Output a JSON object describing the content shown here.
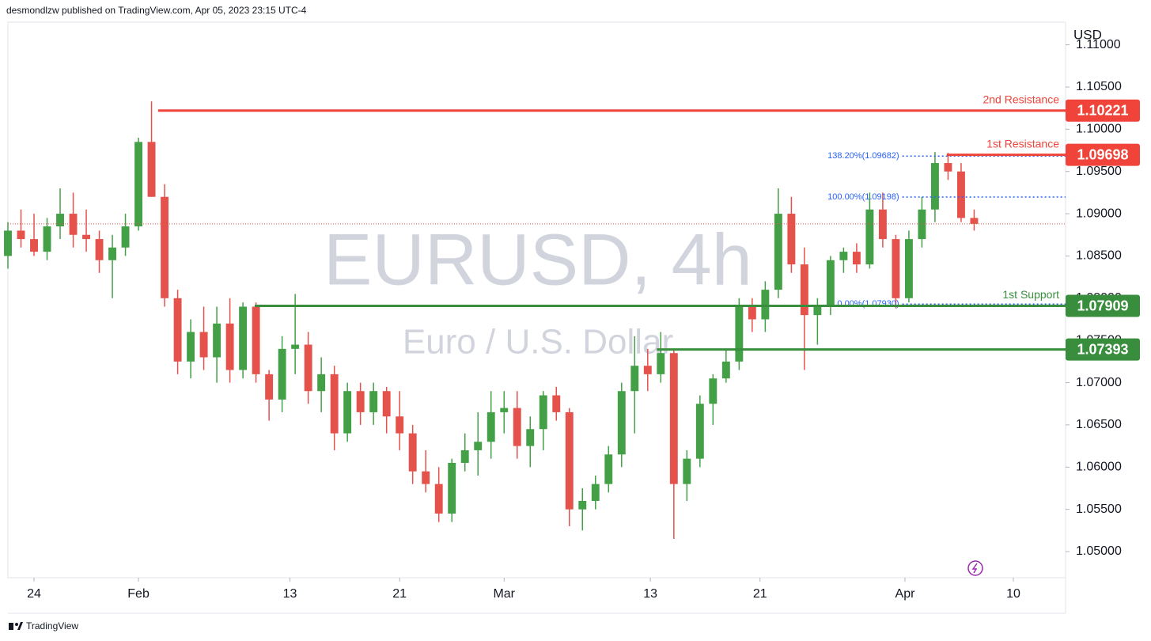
{
  "chart_data": {
    "type": "candlestick",
    "header": "desmondlzw published on TradingView.com, Apr 05, 2023 23:15 UTC-4",
    "symbol_title": "EURUSD, 4h",
    "symbol_name": "Euro / U.S. Dollar",
    "currency": "USD",
    "brand": "TradingView",
    "up_color": "#43a047",
    "down_color": "#e5524c",
    "x": [
      -2,
      -1,
      0,
      1,
      2,
      3,
      4,
      5,
      6,
      7,
      8,
      9,
      10,
      11,
      12,
      13,
      14,
      15,
      16,
      17,
      18,
      19,
      20,
      21,
      22,
      23,
      24,
      25,
      26,
      27,
      28,
      29,
      30,
      31,
      32,
      33,
      34,
      35,
      36,
      37,
      38,
      39,
      40,
      41,
      42,
      43,
      44,
      45,
      46,
      47,
      48,
      49,
      50,
      51,
      52,
      53,
      54,
      55,
      56,
      57,
      58,
      59,
      60,
      61,
      62,
      63,
      64,
      65,
      66,
      67,
      68,
      69,
      70,
      71,
      72
    ],
    "open": [
      1.085,
      1.088,
      1.087,
      1.0855,
      1.0885,
      1.09,
      1.0875,
      1.087,
      1.0845,
      1.086,
      1.0885,
      1.0985,
      1.092,
      1.08,
      1.0725,
      1.076,
      1.073,
      1.077,
      1.0715,
      1.079,
      1.071,
      1.068,
      1.074,
      1.0745,
      1.069,
      1.071,
      1.064,
      1.069,
      1.0665,
      1.069,
      1.066,
      1.064,
      1.0595,
      1.058,
      1.0545,
      1.0605,
      1.062,
      1.063,
      1.0665,
      1.067,
      1.0625,
      1.0645,
      1.0685,
      1.0665,
      1.055,
      1.056,
      1.058,
      1.0615,
      1.069,
      1.072,
      1.071,
      1.0735,
      1.058,
      1.061,
      1.0675,
      1.0705,
      1.0725,
      1.079,
      1.0775,
      1.081,
      1.09,
      1.084,
      1.078,
      1.079,
      1.0845,
      1.0855,
      1.084,
      1.0905,
      1.087,
      1.08,
      1.087,
      1.0905,
      1.096,
      1.095,
      1.0895
    ],
    "high": [
      1.089,
      1.0905,
      1.09,
      1.0895,
      1.093,
      1.0925,
      1.0905,
      1.088,
      1.0875,
      1.09,
      1.099,
      1.1033,
      1.0935,
      1.081,
      1.0775,
      1.079,
      1.079,
      1.08,
      1.0795,
      1.0795,
      1.0715,
      1.0755,
      1.0805,
      1.076,
      1.073,
      1.072,
      1.07,
      1.07,
      1.07,
      1.0695,
      1.069,
      1.065,
      1.062,
      1.06,
      1.061,
      1.064,
      1.0665,
      1.069,
      1.069,
      1.069,
      1.066,
      1.069,
      1.0695,
      1.067,
      1.0575,
      1.059,
      1.0625,
      1.07,
      1.0755,
      1.074,
      1.076,
      1.074,
      1.062,
      1.0685,
      1.071,
      1.074,
      1.08,
      1.08,
      1.082,
      1.093,
      1.092,
      1.086,
      1.08,
      1.085,
      1.086,
      1.0865,
      1.0925,
      1.0925,
      1.0875,
      1.088,
      1.092,
      1.0973,
      1.0972,
      1.096,
      1.0905
    ],
    "low": [
      1.0835,
      1.086,
      1.085,
      1.0845,
      1.087,
      1.086,
      1.0855,
      1.083,
      1.08,
      1.085,
      1.088,
      1.092,
      1.079,
      1.071,
      1.0705,
      1.0715,
      1.07,
      1.07,
      1.0705,
      1.07,
      1.0655,
      1.0665,
      1.071,
      1.0675,
      1.0665,
      1.062,
      1.063,
      1.065,
      1.065,
      1.064,
      1.062,
      1.058,
      1.057,
      1.0535,
      1.0535,
      1.0595,
      1.059,
      1.061,
      1.064,
      1.061,
      1.06,
      1.062,
      1.0655,
      1.053,
      1.0525,
      1.055,
      1.057,
      1.06,
      1.064,
      1.069,
      1.07,
      1.0515,
      1.056,
      1.06,
      1.065,
      1.07,
      1.0715,
      1.076,
      1.076,
      1.08,
      1.083,
      1.0715,
      1.0745,
      1.078,
      1.083,
      1.083,
      1.0835,
      1.086,
      1.0788,
      1.0795,
      1.086,
      1.089,
      1.094,
      1.089,
      1.088
    ],
    "close": [
      1.088,
      1.087,
      1.0855,
      1.0885,
      1.09,
      1.0875,
      1.087,
      1.0845,
      1.086,
      1.0885,
      1.0985,
      1.092,
      1.08,
      1.0725,
      1.076,
      1.073,
      1.077,
      1.0715,
      1.079,
      1.071,
      1.068,
      1.074,
      1.0745,
      1.069,
      1.071,
      1.064,
      1.069,
      1.0665,
      1.069,
      1.066,
      1.064,
      1.0595,
      1.058,
      1.0545,
      1.0605,
      1.062,
      1.063,
      1.0665,
      1.067,
      1.0625,
      1.0645,
      1.0685,
      1.0665,
      1.055,
      1.056,
      1.058,
      1.0615,
      1.069,
      1.072,
      1.071,
      1.0735,
      1.058,
      1.061,
      1.0675,
      1.0705,
      1.0725,
      1.079,
      1.0775,
      1.081,
      1.09,
      1.084,
      1.078,
      1.079,
      1.0845,
      1.0855,
      1.084,
      1.0905,
      1.087,
      1.08,
      1.087,
      1.0905,
      1.096,
      1.095,
      1.0895,
      1.0888
    ],
    "xlim": [
      -2,
      79
    ],
    "xticks": [
      {
        "value": 0,
        "label": "24"
      },
      {
        "value": 8,
        "label": "Feb"
      },
      {
        "value": 19.6,
        "label": "13"
      },
      {
        "value": 28,
        "label": "21"
      },
      {
        "value": 36,
        "label": "Mar"
      },
      {
        "value": 47.2,
        "label": "13"
      },
      {
        "value": 55.6,
        "label": "21"
      },
      {
        "value": 66.7,
        "label": "Apr"
      },
      {
        "value": 75,
        "label": "10"
      }
    ],
    "ylim": [
      1.04691,
      1.11268
    ],
    "yticks": [
      {
        "value": 1.05,
        "label": "1.05000"
      },
      {
        "value": 1.055,
        "label": "1.05500"
      },
      {
        "value": 1.06,
        "label": "1.06000"
      },
      {
        "value": 1.065,
        "label": "1.06500"
      },
      {
        "value": 1.07,
        "label": "1.07000"
      },
      {
        "value": 1.075,
        "label": "1.07500"
      },
      {
        "value": 1.08,
        "label": "1.08000"
      },
      {
        "value": 1.085,
        "label": "1.08500"
      },
      {
        "value": 1.09,
        "label": "1.09000"
      },
      {
        "value": 1.095,
        "label": "1.09500"
      },
      {
        "value": 1.1,
        "label": "1.10000"
      },
      {
        "value": 1.105,
        "label": "1.10500"
      },
      {
        "value": 1.11,
        "label": "1.11000"
      }
    ],
    "levels": [
      {
        "label": "2nd Resistance",
        "value": 1.10221,
        "color": "#f0433a",
        "x_start": 9.5
      },
      {
        "label": "1st Resistance",
        "value": 1.09698,
        "color": "#f0433a",
        "x_start": 69.9
      },
      {
        "label": "1st Support",
        "value": 1.07909,
        "color": "#388e3c",
        "x_start": 16.9
      },
      {
        "value": 1.07393,
        "color": "#388e3c",
        "x_start": 47.7
      }
    ],
    "fib": [
      {
        "value": 1.09682,
        "label": "138.20%(1.09682)"
      },
      {
        "value": 1.09198,
        "label": "100.00%(1.09198)"
      },
      {
        "value": 1.0793,
        "label": "0.00%(1.07930)"
      }
    ],
    "fib_color": "#2962ff",
    "fib_x_start": 66.5
  }
}
